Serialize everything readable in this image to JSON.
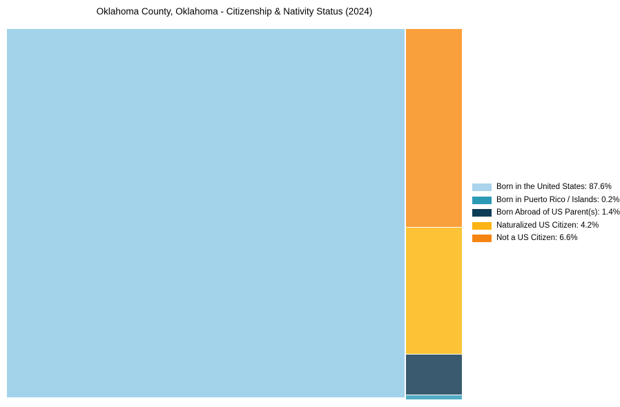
{
  "title": "Oklahoma County, Oklahoma - Citizenship & Nativity Status (2024)",
  "chart_data": {
    "type": "treemap",
    "title": "Oklahoma County, Oklahoma - Citizenship & Nativity Status (2024)",
    "categories": [
      "Born in the United States",
      "Born in Puerto Rico / Islands",
      "Born Abroad of US Parent(s)",
      "Naturalized US Citizen",
      "Not a US Citizen"
    ],
    "values": [
      87.6,
      0.2,
      1.4,
      4.2,
      6.6
    ],
    "unit": "percent",
    "legend_position": "right-middle",
    "grid": false,
    "layout_hint": "single large tile for majority category on left; remaining categories stacked in one column on right, sized by value",
    "legend_colors": [
      "#A9D4EB",
      "#2B9AB5",
      "#0D3C57",
      "#FDB414",
      "#F58511"
    ],
    "cell_colors": [
      "#A3D2EB",
      "#52AEC4",
      "#395A6F",
      "#FDC337",
      "#F9A03C"
    ]
  },
  "treemap": {
    "cells": [
      {
        "label": "Born in the United States",
        "value_pct": 87.6,
        "fill": "#A3D2EB"
      },
      {
        "label": "Not a US Citizen",
        "value_pct": 6.6,
        "fill": "#F9A03C"
      },
      {
        "label": "Naturalized US Citizen",
        "value_pct": 4.2,
        "fill": "#FDC337"
      },
      {
        "label": "Born Abroad of US Parent(s)",
        "value_pct": 1.4,
        "fill": "#395A6F"
      },
      {
        "label": "Born in Puerto Rico / Islands",
        "value_pct": 0.2,
        "fill": "#52AEC4"
      }
    ]
  },
  "legend": {
    "items": [
      {
        "label": "Born in the United States: 87.6%",
        "color": "#A9D4EB"
      },
      {
        "label": "Born in Puerto Rico / Islands: 0.2%",
        "color": "#2B9AB5"
      },
      {
        "label": "Born Abroad of US Parent(s): 1.4%",
        "color": "#0D3C57"
      },
      {
        "label": "Naturalized US Citizen: 4.2%",
        "color": "#FDB414"
      },
      {
        "label": "Not a US Citizen: 6.6%",
        "color": "#F58511"
      }
    ]
  }
}
